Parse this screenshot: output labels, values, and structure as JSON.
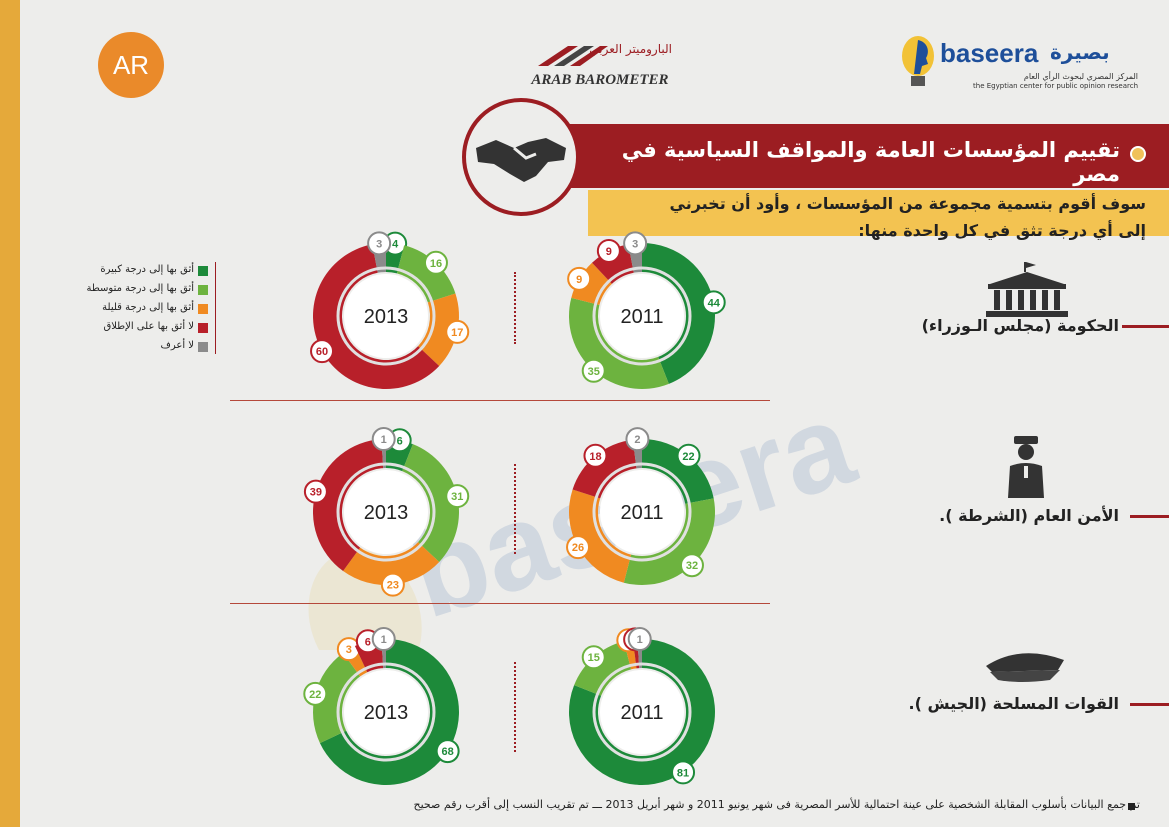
{
  "header": {
    "logo_ar": "AR",
    "arab_barometer_ar": "الباروميتر العربي",
    "arab_barometer_en": "ARAB BAROMETER",
    "baseera_en": "baseera",
    "baseera_ar": "بصيرة",
    "baseera_sub_ar": "المركز المصري لبحوث الرأي العام",
    "baseera_sub_en": "the Egyptian center for public opinion research"
  },
  "title": "تقييم المؤسسات العامة والمواقف السياسية في مصر",
  "question": {
    "line1": "سوف أقوم بتسمية مجموعة من المؤسسات ، وأود أن تخبرني",
    "line2": "إلى أي درجة تثق في كل واحدة منها:"
  },
  "legend": [
    {
      "label": "أثق بها إلى درجة كبيرة",
      "color": "#1d8a3a"
    },
    {
      "label": "أثق بها إلى درجة متوسطة",
      "color": "#6db33f"
    },
    {
      "label": "أثق بها إلى درجة قليلة",
      "color": "#f08a21"
    },
    {
      "label": "لا أثق بها على الإطلاق",
      "color": "#b8202a"
    },
    {
      "label": "لا أعرف",
      "color": "#8b8b8b"
    }
  ],
  "institutions": [
    {
      "label": "الحكومة (مجلس الـوزراء)"
    },
    {
      "label": "الأمن العام (الشرطة )."
    },
    {
      "label": "القوات المسلحة (الجيش )."
    }
  ],
  "footer": "تم جمع البيانات بأسلوب المقابلة الشخصية على عينة احتمالية للأسر المصرية فى شهر يونيو 2011 و شهر أبريل 2013 ـــ تم تقريب النسب إلى أقرب رقم صحيح",
  "chart_data": [
    {
      "type": "pie",
      "title": "2011",
      "institution": "الحكومة (مجلس الـوزراء)",
      "values": [
        44,
        35,
        9,
        9,
        3
      ]
    },
    {
      "type": "pie",
      "title": "2013",
      "institution": "الحكومة (مجلس الـوزراء)",
      "values": [
        4,
        16,
        17,
        60,
        3
      ]
    },
    {
      "type": "pie",
      "title": "2011",
      "institution": "الأمن العام (الشرطة ).",
      "values": [
        22,
        32,
        26,
        18,
        2
      ]
    },
    {
      "type": "pie",
      "title": "2013",
      "institution": "الأمن العام (الشرطة ).",
      "values": [
        6,
        31,
        23,
        39,
        1
      ]
    },
    {
      "type": "pie",
      "title": "2011",
      "institution": "القوات المسلحة (الجيش ).",
      "values": [
        81,
        15,
        2,
        1,
        1
      ]
    },
    {
      "type": "pie",
      "title": "2013",
      "institution": "القوات المسلحة (الجيش ).",
      "values": [
        68,
        22,
        3,
        6,
        1
      ]
    }
  ]
}
